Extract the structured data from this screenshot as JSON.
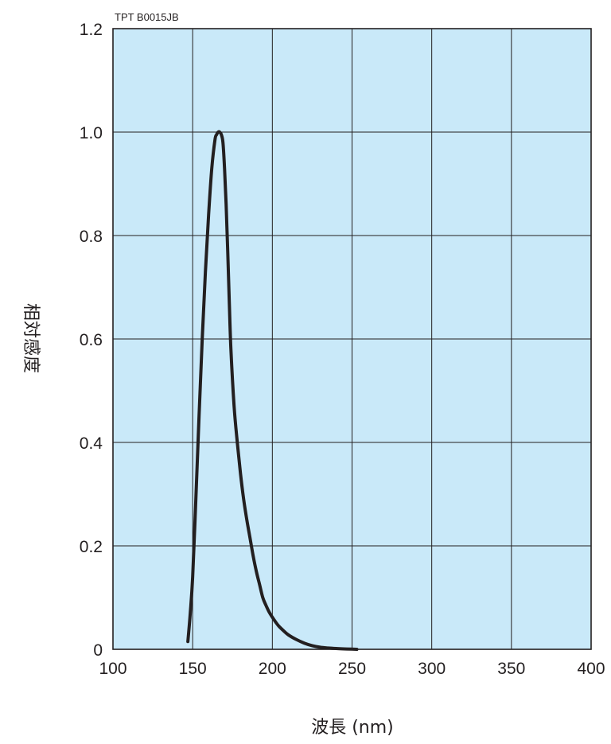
{
  "chart_data": {
    "type": "line",
    "code": "TPT B0015JB",
    "xlabel": "波長 (nm)",
    "ylabel": "相対感度",
    "xlim": [
      100,
      400
    ],
    "ylim": [
      0,
      1.2
    ],
    "x_ticks": [
      "100",
      "150",
      "200",
      "250",
      "300",
      "350",
      "400"
    ],
    "y_ticks": [
      "0",
      "0.2",
      "0.4",
      "0.6",
      "0.8",
      "1.0",
      "1.2"
    ],
    "x_gridlines": [
      150,
      200,
      250,
      300,
      350
    ],
    "y_gridlines": [
      0.2,
      0.4,
      0.6,
      0.8,
      1.0
    ],
    "grid": true,
    "colors": {
      "plot_background": "#c9e9f9",
      "line": "#231f20",
      "grid": "#231f20"
    },
    "series": [
      {
        "x": [
          147,
          148.5,
          150,
          152,
          154,
          156,
          158,
          160,
          162,
          164,
          165,
          166,
          167,
          168,
          169,
          170,
          171,
          172,
          173,
          174,
          176,
          178,
          180,
          182,
          184,
          186,
          188,
          190,
          192,
          194,
          196,
          198,
          200,
          202,
          204,
          207,
          210,
          215,
          220,
          225,
          230,
          235,
          240,
          245,
          250,
          253
        ],
        "y": [
          0.015,
          0.07,
          0.14,
          0.29,
          0.45,
          0.6,
          0.73,
          0.84,
          0.93,
          0.985,
          0.995,
          1.0,
          1.0,
          0.995,
          0.98,
          0.93,
          0.86,
          0.77,
          0.67,
          0.58,
          0.47,
          0.4,
          0.34,
          0.29,
          0.25,
          0.215,
          0.18,
          0.15,
          0.125,
          0.1,
          0.085,
          0.072,
          0.062,
          0.053,
          0.045,
          0.036,
          0.028,
          0.019,
          0.012,
          0.007,
          0.004,
          0.0025,
          0.0015,
          0.0008,
          0.0003,
          0.0
        ]
      }
    ]
  }
}
